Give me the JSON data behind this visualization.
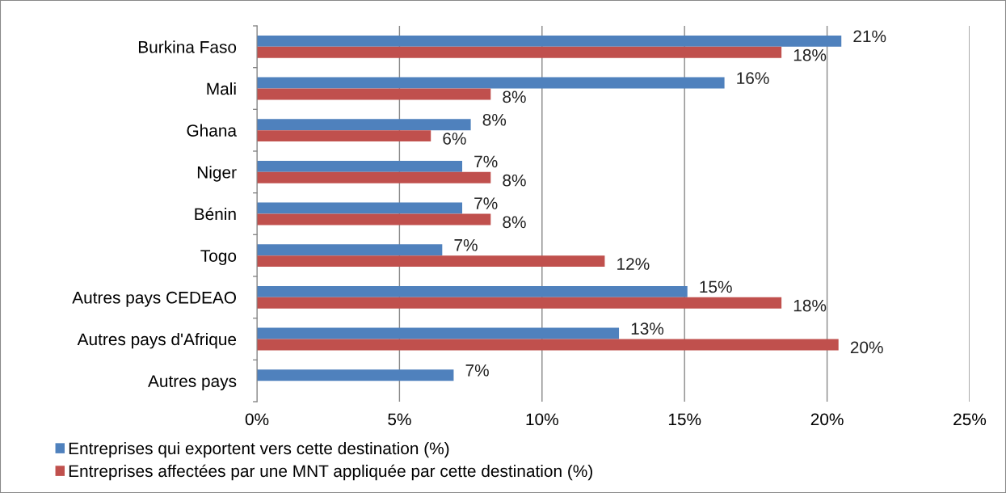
{
  "chart_data": {
    "type": "bar",
    "orientation": "horizontal",
    "categories": [
      "Burkina Faso",
      "Mali",
      "Ghana",
      "Niger",
      "Bénin",
      "Togo",
      "Autres pays CEDEAO",
      "Autres pays d'Afrique",
      "Autres pays"
    ],
    "series": [
      {
        "name": "Entreprises qui exportent vers cette destination (%)",
        "color": "#4f81bd",
        "values": [
          20.5,
          16.4,
          7.5,
          7.2,
          7.2,
          6.5,
          15.1,
          12.7,
          6.9
        ],
        "value_labels": [
          "21%",
          "16%",
          "8%",
          "7%",
          "7%",
          "7%",
          "15%",
          "13%",
          "7%"
        ]
      },
      {
        "name": "Entreprises affectées par une MNT appliquée par cette destination (%)",
        "color": "#c0504d",
        "values": [
          18.4,
          8.2,
          6.1,
          8.2,
          8.2,
          12.2,
          18.4,
          20.4,
          null
        ],
        "value_labels": [
          "18%",
          "8%",
          "6%",
          "8%",
          "8%",
          "12%",
          "18%",
          "20%",
          null
        ]
      }
    ],
    "xlim": [
      0,
      25
    ],
    "xticks": [
      {
        "value": 0,
        "label": "0%"
      },
      {
        "value": 5,
        "label": "5%"
      },
      {
        "value": 10,
        "label": "10%"
      },
      {
        "value": 15,
        "label": "15%"
      },
      {
        "value": 20,
        "label": "20%"
      },
      {
        "value": 25,
        "label": "25%"
      }
    ],
    "grid": "x",
    "legend": "bottom left"
  }
}
